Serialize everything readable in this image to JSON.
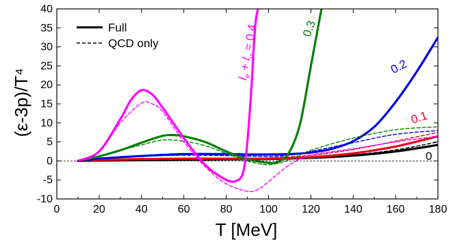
{
  "chart_data": {
    "type": "line",
    "xlabel": "T [MeV]",
    "ylabel": "(ε-3p)/T⁴",
    "xlim": [
      0,
      180
    ],
    "ylim": [
      -10,
      40
    ],
    "xticks": [
      0,
      20,
      40,
      60,
      80,
      100,
      120,
      140,
      160,
      180
    ],
    "yticks": [
      -10,
      -5,
      0,
      5,
      10,
      15,
      20,
      25,
      30,
      35,
      40
    ],
    "grid": false,
    "legend_placement": "top-left",
    "legend": [
      {
        "label": "Full",
        "style": "solid"
      },
      {
        "label": "QCD only",
        "style": "dashed"
      }
    ],
    "zero_line": {
      "y": 0,
      "style": "dashed"
    },
    "series": [
      {
        "label_text": "0",
        "color": "#000000",
        "style": "solid",
        "x": [
          10,
          20,
          40,
          60,
          80,
          100,
          120,
          140,
          160,
          180
        ],
        "y": [
          0,
          0.1,
          0.2,
          0.3,
          0.4,
          0.5,
          0.8,
          1.4,
          2.5,
          4.2
        ]
      },
      {
        "color": "#000000",
        "style": "dashed",
        "x": [
          10,
          20,
          40,
          60,
          80,
          100,
          120,
          140,
          160,
          180
        ],
        "y": [
          0,
          0.1,
          0.2,
          0.3,
          0.4,
          0.5,
          0.9,
          1.6,
          2.9,
          5.0
        ]
      },
      {
        "label_text": "0.1",
        "color": "#e8001a",
        "style": "solid",
        "x": [
          10,
          20,
          40,
          60,
          80,
          100,
          120,
          140,
          160,
          180
        ],
        "y": [
          0,
          0.2,
          0.5,
          0.6,
          0.6,
          0.6,
          1.0,
          2.0,
          3.8,
          6.5
        ]
      },
      {
        "color": "#e8001a",
        "style": "dashed",
        "x": [
          10,
          20,
          40,
          60,
          80,
          100,
          120,
          140,
          160,
          180
        ],
        "y": [
          0,
          0.2,
          0.5,
          0.6,
          0.7,
          0.8,
          1.5,
          3.0,
          5.2,
          7.5
        ]
      },
      {
        "label_text": "0.2",
        "color": "#0000e0",
        "style": "solid",
        "x": [
          10,
          20,
          40,
          60,
          80,
          90,
          100,
          110,
          120,
          130,
          140,
          150,
          160,
          170,
          180
        ],
        "y": [
          0,
          0.6,
          1.3,
          1.8,
          1.8,
          1.7,
          1.7,
          1.8,
          2.2,
          3.2,
          5.2,
          9.0,
          15.5,
          23.5,
          32.5
        ]
      },
      {
        "color": "#0000e0",
        "style": "dashed",
        "x": [
          10,
          20,
          40,
          60,
          80,
          100,
          110,
          120,
          140,
          160,
          180
        ],
        "y": [
          0,
          0.6,
          1.2,
          1.5,
          1.4,
          1.2,
          1.5,
          2.5,
          4.8,
          7.0,
          8.0
        ]
      },
      {
        "label_text": "0.3",
        "color": "#008000",
        "style": "solid",
        "x": [
          10,
          20,
          30,
          40,
          50,
          55,
          60,
          70,
          80,
          90,
          100,
          105,
          110,
          115,
          120,
          125
        ],
        "y": [
          0,
          1.2,
          2.8,
          4.8,
          6.6,
          6.8,
          6.5,
          5.0,
          2.5,
          0.5,
          -0.5,
          -0.1,
          2.5,
          10.0,
          25.0,
          40.0
        ]
      },
      {
        "color": "#008000",
        "style": "dashed",
        "x": [
          10,
          20,
          30,
          40,
          50,
          60,
          70,
          80,
          90,
          100,
          110,
          120,
          140,
          160,
          180
        ],
        "y": [
          0,
          1.2,
          2.8,
          4.2,
          5.5,
          5.2,
          4.0,
          2.0,
          0.0,
          -1.0,
          0.3,
          2.8,
          6.0,
          8.2,
          9.0
        ]
      },
      {
        "label_text": "l_e + l_μ = 0.4",
        "color": "#ff00ff",
        "style": "solid",
        "x": [
          10,
          20,
          30,
          35,
          40,
          45,
          50,
          60,
          70,
          80,
          85,
          88,
          90,
          92,
          93,
          94,
          95
        ],
        "y": [
          0,
          2.5,
          11.0,
          16.0,
          18.6,
          17.5,
          14.0,
          6.0,
          -1.0,
          -5.0,
          -5.2,
          -3.0,
          5.0,
          20.0,
          30.0,
          37.0,
          40.0
        ]
      },
      {
        "color": "#ff00ff",
        "style": "dashed",
        "x": [
          10,
          20,
          30,
          40,
          45,
          50,
          60,
          70,
          80,
          90,
          95,
          100,
          110,
          120,
          140,
          160,
          180
        ],
        "y": [
          0,
          2.3,
          10.0,
          15.2,
          15.0,
          13.0,
          5.0,
          -1.5,
          -6.0,
          -8.0,
          -7.5,
          -5.5,
          -1.0,
          1.5,
          3.2,
          5.0,
          6.5
        ]
      }
    ]
  }
}
